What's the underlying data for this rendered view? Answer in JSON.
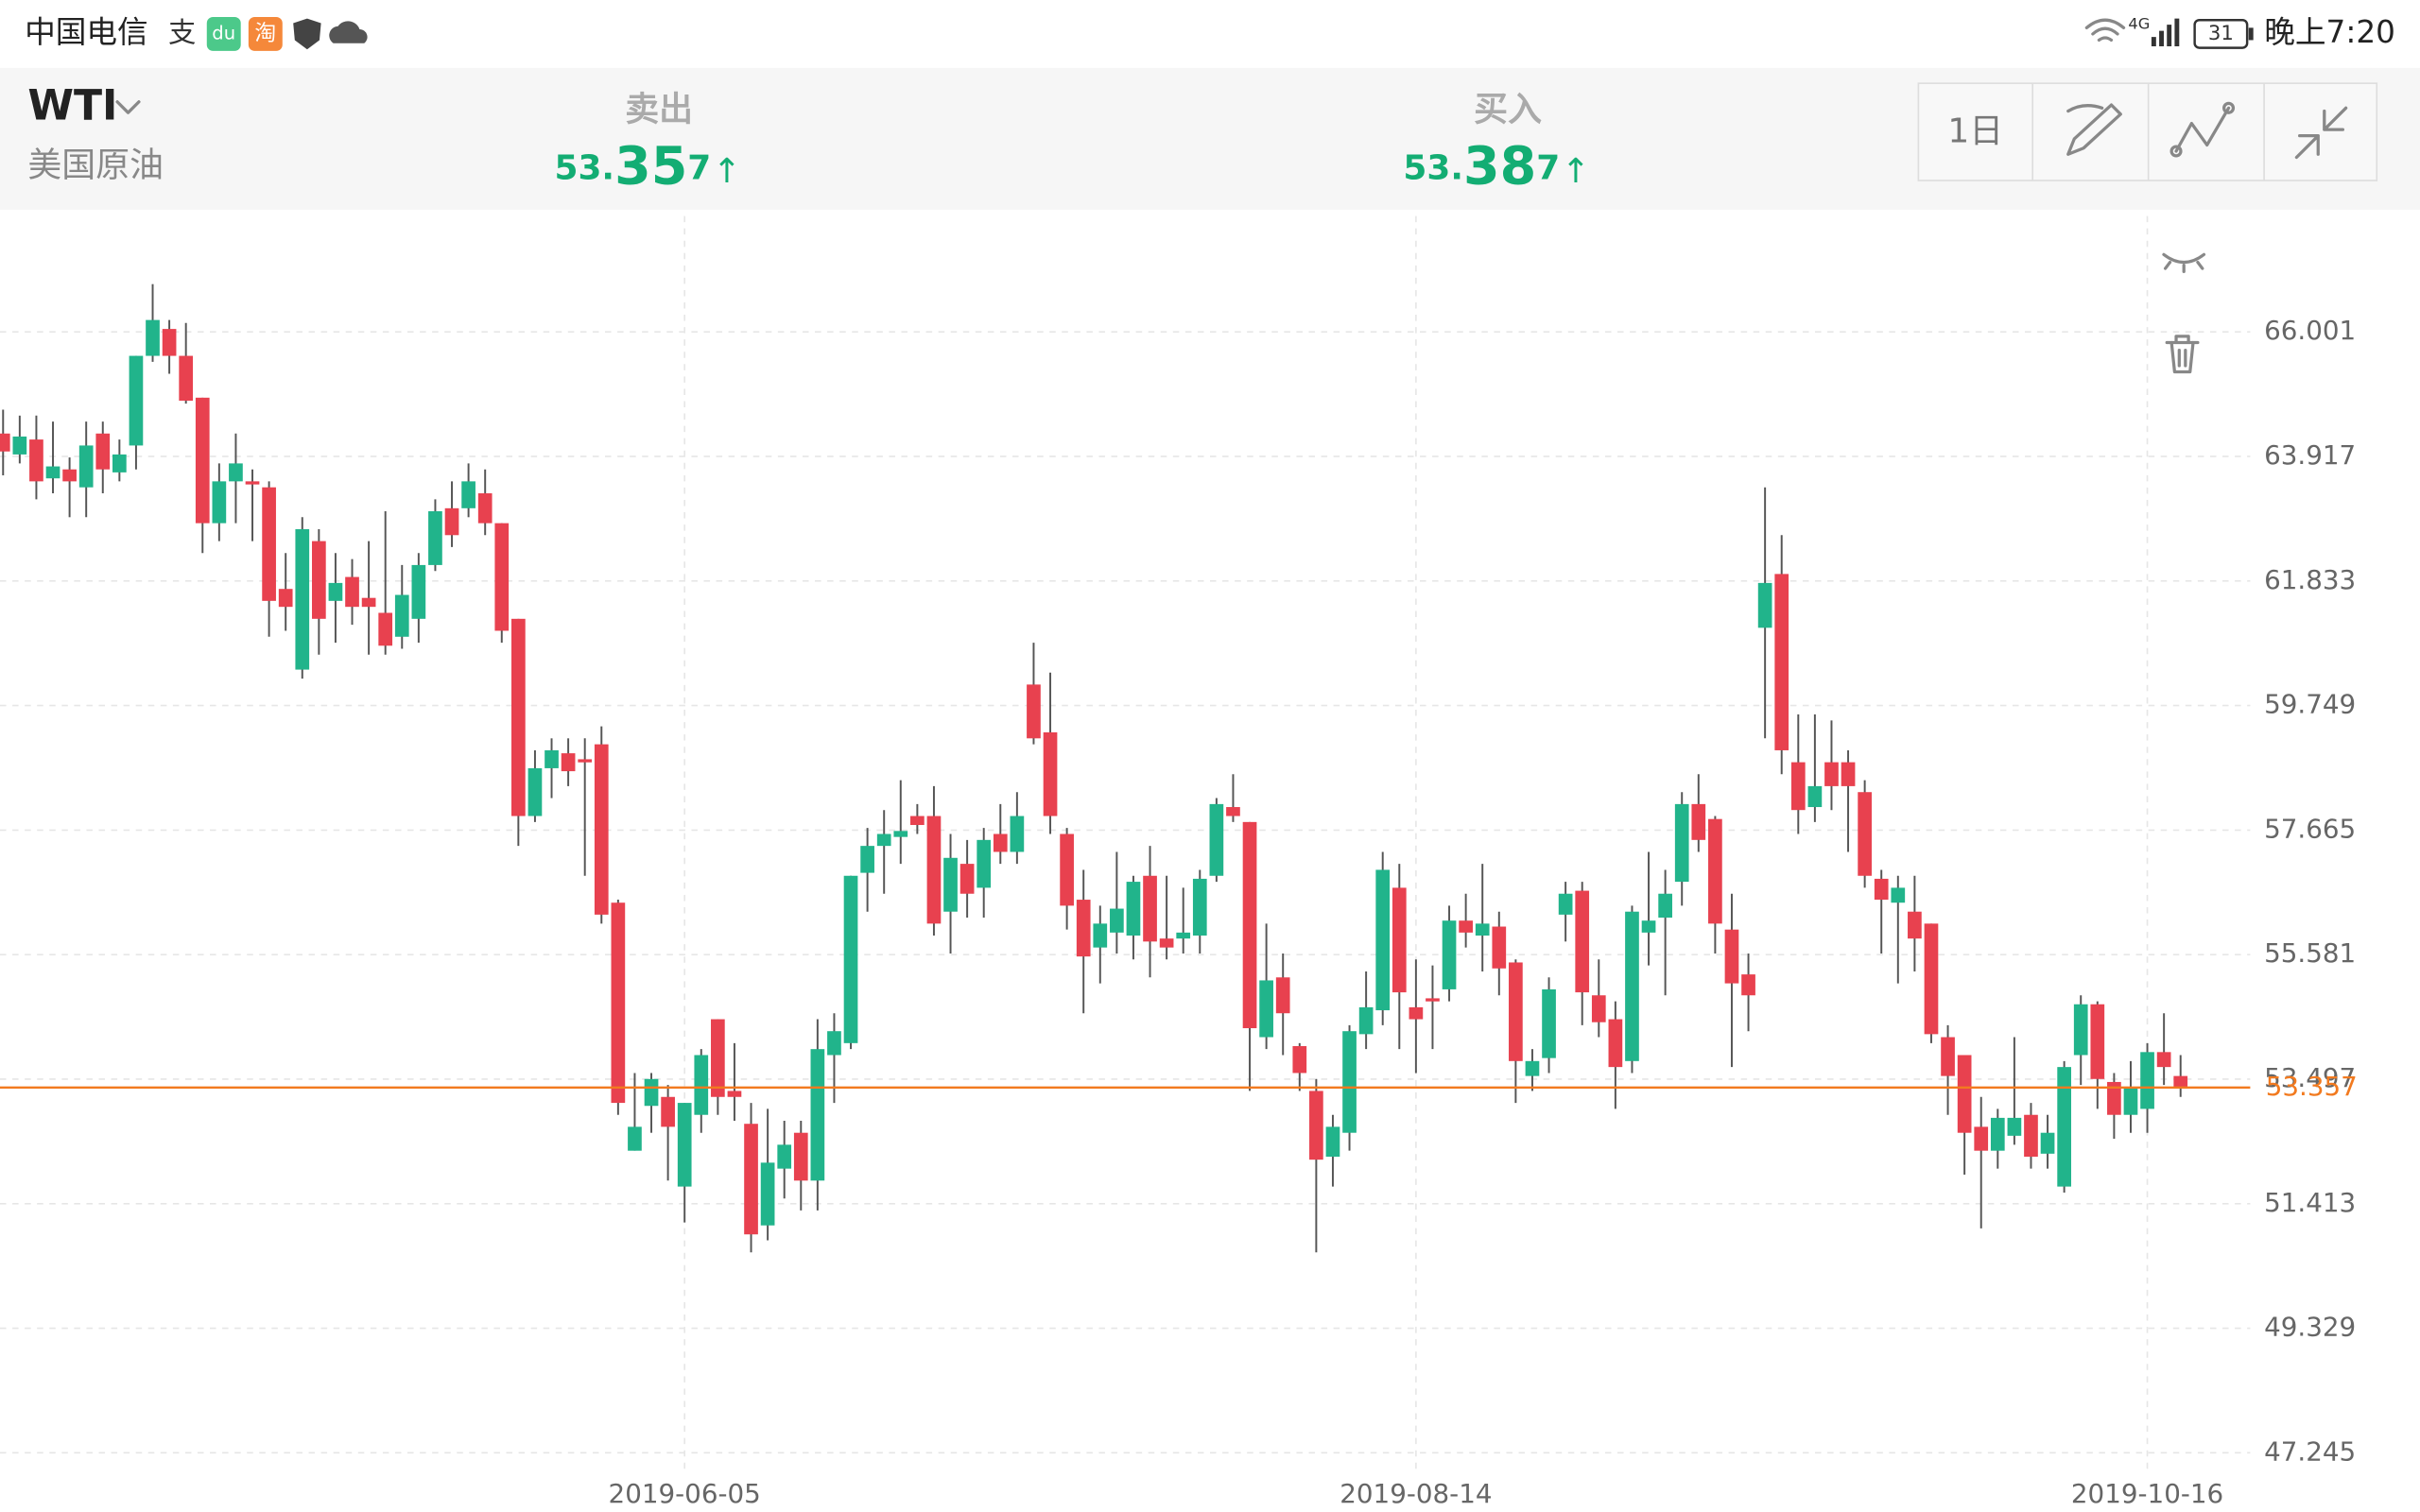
{
  "status_bar": {
    "carrier": "中国电信",
    "icons": [
      "支",
      "du",
      "淘"
    ],
    "network": "4G",
    "battery": "31",
    "time": "晚上7:20"
  },
  "header": {
    "symbol": "WTI",
    "name": "美国原油",
    "sell": {
      "label": "卖出",
      "price": "53.357",
      "arrow": "↑"
    },
    "buy": {
      "label": "买入",
      "price": "53.387",
      "arrow": "↑"
    },
    "period": "1日"
  },
  "chart_data": {
    "type": "candlestick",
    "up_color": "#21b48b",
    "down_color": "#e8414f",
    "grid": true,
    "ylim": [
      46.9,
      67.94
    ],
    "yticks": [
      47.245,
      49.329,
      51.413,
      53.497,
      55.581,
      57.665,
      59.749,
      61.833,
      63.917,
      66.001
    ],
    "current_price": 53.357,
    "current_price_color": "#f27a1f",
    "categories": [
      null,
      null,
      null,
      null,
      null,
      null,
      null,
      null,
      null,
      null,
      null,
      null,
      null,
      null,
      null,
      null,
      null,
      null,
      null,
      null,
      null,
      null,
      null,
      null,
      null,
      null,
      null,
      null,
      null,
      null,
      null,
      null,
      null,
      null,
      null,
      null,
      null,
      null,
      null,
      null,
      null,
      "2019-06-05",
      null,
      null,
      null,
      null,
      null,
      null,
      null,
      null,
      null,
      null,
      null,
      null,
      null,
      null,
      null,
      null,
      null,
      null,
      null,
      null,
      null,
      null,
      null,
      null,
      null,
      null,
      null,
      null,
      null,
      null,
      null,
      null,
      null,
      null,
      null,
      null,
      null,
      null,
      null,
      null,
      null,
      null,
      null,
      "2019-08-14",
      null,
      null,
      null,
      null,
      null,
      null,
      null,
      null,
      null,
      null,
      null,
      null,
      null,
      null,
      null,
      null,
      null,
      null,
      null,
      null,
      null,
      null,
      null,
      null,
      null,
      null,
      null,
      null,
      null,
      null,
      null,
      null,
      null,
      null,
      null,
      null,
      null,
      null,
      null,
      null,
      null,
      null,
      null,
      "2019-10-16",
      null,
      null
    ],
    "ohlc": [
      [
        64.3,
        64.7,
        63.6,
        64.0
      ],
      [
        63.95,
        64.6,
        63.8,
        64.25
      ],
      [
        64.2,
        64.6,
        63.2,
        63.5
      ],
      [
        63.55,
        64.5,
        63.3,
        63.75
      ],
      [
        63.7,
        63.9,
        62.9,
        63.5
      ],
      [
        63.4,
        64.5,
        62.9,
        64.1
      ],
      [
        64.3,
        64.5,
        63.3,
        63.7
      ],
      [
        63.65,
        64.2,
        63.5,
        63.95
      ],
      [
        64.1,
        65.6,
        63.7,
        65.6
      ],
      [
        65.6,
        66.8,
        65.5,
        66.2
      ],
      [
        66.05,
        66.2,
        65.3,
        65.6
      ],
      [
        65.6,
        66.15,
        64.8,
        64.85
      ],
      [
        64.9,
        64.9,
        62.3,
        62.8
      ],
      [
        62.8,
        63.8,
        62.5,
        63.5
      ],
      [
        63.5,
        64.3,
        62.8,
        63.8
      ],
      [
        63.5,
        63.7,
        62.5,
        63.45
      ],
      [
        63.4,
        63.5,
        60.9,
        61.5
      ],
      [
        61.7,
        62.3,
        61.0,
        61.4
      ],
      [
        60.35,
        62.9,
        60.2,
        62.7
      ],
      [
        62.5,
        62.7,
        60.6,
        61.2
      ],
      [
        61.5,
        62.3,
        60.8,
        61.8
      ],
      [
        61.9,
        62.2,
        61.1,
        61.4
      ],
      [
        61.55,
        62.5,
        60.6,
        61.4
      ],
      [
        61.3,
        63.0,
        60.6,
        60.75
      ],
      [
        60.9,
        62.1,
        60.7,
        61.6
      ],
      [
        61.2,
        62.3,
        60.8,
        62.1
      ],
      [
        62.1,
        63.2,
        62.0,
        63.0
      ],
      [
        63.05,
        63.5,
        62.4,
        62.6
      ],
      [
        63.05,
        63.8,
        62.9,
        63.5
      ],
      [
        63.3,
        63.7,
        62.6,
        62.8
      ],
      [
        62.8,
        62.8,
        60.8,
        61.0
      ],
      [
        61.2,
        61.2,
        57.4,
        57.9
      ],
      [
        57.9,
        59.0,
        57.8,
        58.7
      ],
      [
        58.7,
        59.2,
        58.2,
        59.0
      ],
      [
        58.95,
        59.2,
        58.4,
        58.65
      ],
      [
        58.85,
        59.2,
        56.9,
        58.8
      ],
      [
        59.1,
        59.4,
        56.1,
        56.25
      ],
      [
        56.45,
        56.5,
        52.9,
        53.1
      ],
      [
        52.3,
        53.6,
        52.3,
        52.7
      ],
      [
        53.05,
        53.6,
        52.6,
        53.5
      ],
      [
        53.2,
        53.4,
        51.8,
        52.7
      ],
      [
        51.7,
        53.1,
        51.1,
        53.1
      ],
      [
        52.9,
        54.0,
        52.6,
        53.9
      ],
      [
        54.5,
        54.5,
        52.9,
        53.2
      ],
      [
        53.3,
        54.1,
        52.8,
        53.2
      ],
      [
        52.75,
        53.1,
        50.6,
        50.9
      ],
      [
        51.05,
        53.0,
        50.8,
        52.1
      ],
      [
        52.0,
        52.8,
        51.5,
        52.4
      ],
      [
        52.6,
        52.8,
        51.3,
        51.8
      ],
      [
        51.8,
        54.5,
        51.3,
        54.0
      ],
      [
        53.9,
        54.6,
        53.1,
        54.3
      ],
      [
        54.1,
        56.9,
        54.0,
        56.9
      ],
      [
        56.95,
        57.7,
        56.3,
        57.4
      ],
      [
        57.4,
        58.0,
        56.6,
        57.6
      ],
      [
        57.55,
        58.5,
        57.1,
        57.65
      ],
      [
        57.9,
        58.1,
        57.6,
        57.75
      ],
      [
        57.9,
        58.4,
        55.9,
        56.1
      ],
      [
        56.3,
        57.6,
        55.6,
        57.2
      ],
      [
        57.1,
        57.5,
        56.2,
        56.6
      ],
      [
        56.7,
        57.7,
        56.2,
        57.5
      ],
      [
        57.6,
        58.1,
        57.1,
        57.3
      ],
      [
        57.3,
        58.3,
        57.1,
        57.9
      ],
      [
        60.1,
        60.8,
        59.1,
        59.2
      ],
      [
        59.3,
        60.3,
        57.6,
        57.9
      ],
      [
        57.6,
        57.7,
        56.0,
        56.4
      ],
      [
        56.5,
        57.0,
        54.6,
        55.55
      ],
      [
        55.7,
        56.4,
        55.1,
        56.1
      ],
      [
        55.95,
        57.3,
        55.6,
        56.35
      ],
      [
        55.9,
        56.9,
        55.5,
        56.8
      ],
      [
        56.9,
        57.4,
        55.2,
        55.8
      ],
      [
        55.85,
        56.9,
        55.5,
        55.7
      ],
      [
        55.85,
        56.7,
        55.6,
        55.95
      ],
      [
        55.9,
        57.0,
        55.6,
        56.85
      ],
      [
        56.9,
        58.2,
        56.8,
        58.1
      ],
      [
        58.05,
        58.6,
        57.8,
        57.9
      ],
      [
        57.8,
        57.8,
        53.3,
        54.35
      ],
      [
        54.2,
        56.1,
        54.0,
        55.15
      ],
      [
        55.2,
        55.6,
        53.9,
        54.6
      ],
      [
        54.05,
        54.1,
        53.3,
        53.6
      ],
      [
        53.3,
        53.5,
        50.6,
        52.15
      ],
      [
        52.2,
        52.9,
        51.7,
        52.7
      ],
      [
        52.6,
        54.4,
        52.3,
        54.3
      ],
      [
        54.25,
        55.3,
        54.0,
        54.7
      ],
      [
        54.65,
        57.3,
        54.4,
        57.0
      ],
      [
        56.7,
        57.1,
        54.0,
        54.95
      ],
      [
        54.7,
        55.5,
        53.6,
        54.5
      ],
      [
        54.85,
        55.4,
        54.0,
        54.8
      ],
      [
        55.0,
        56.4,
        54.8,
        56.15
      ],
      [
        56.15,
        56.6,
        55.7,
        55.95
      ],
      [
        55.9,
        57.1,
        55.3,
        56.1
      ],
      [
        56.05,
        56.3,
        54.9,
        55.35
      ],
      [
        55.45,
        55.5,
        53.1,
        53.8
      ],
      [
        53.55,
        54.0,
        53.3,
        53.8
      ],
      [
        53.85,
        55.2,
        53.6,
        55.0
      ],
      [
        56.25,
        56.8,
        55.8,
        56.6
      ],
      [
        56.65,
        56.8,
        54.4,
        54.95
      ],
      [
        54.9,
        55.5,
        54.2,
        54.45
      ],
      [
        54.5,
        54.8,
        53.0,
        53.7
      ],
      [
        53.8,
        56.4,
        53.6,
        56.3
      ],
      [
        55.95,
        57.3,
        55.4,
        56.15
      ],
      [
        56.2,
        57.0,
        54.9,
        56.6
      ],
      [
        56.8,
        58.3,
        56.4,
        58.1
      ],
      [
        58.1,
        58.6,
        57.3,
        57.5
      ],
      [
        57.85,
        57.9,
        55.6,
        56.1
      ],
      [
        56.0,
        56.6,
        53.7,
        55.1
      ],
      [
        55.25,
        55.6,
        54.3,
        54.9
      ],
      [
        61.05,
        63.4,
        59.2,
        61.8
      ],
      [
        61.95,
        62.6,
        58.6,
        59.0
      ],
      [
        58.8,
        59.6,
        57.6,
        58.0
      ],
      [
        58.05,
        59.6,
        57.8,
        58.4
      ],
      [
        58.8,
        59.5,
        58.0,
        58.4
      ],
      [
        58.8,
        59.0,
        57.3,
        58.4
      ],
      [
        58.3,
        58.5,
        56.7,
        56.9
      ],
      [
        56.85,
        57.0,
        55.6,
        56.5
      ],
      [
        56.45,
        56.9,
        55.1,
        56.7
      ],
      [
        56.3,
        56.9,
        55.3,
        55.85
      ],
      [
        56.1,
        56.1,
        54.1,
        54.25
      ],
      [
        54.2,
        54.4,
        52.9,
        53.55
      ],
      [
        53.9,
        53.9,
        51.9,
        52.6
      ],
      [
        52.7,
        53.2,
        51.0,
        52.3
      ],
      [
        52.3,
        53.0,
        52.0,
        52.85
      ],
      [
        52.55,
        54.2,
        52.4,
        52.85
      ],
      [
        52.9,
        53.1,
        52.0,
        52.2
      ],
      [
        52.25,
        52.9,
        52.0,
        52.6
      ],
      [
        51.7,
        53.8,
        51.6,
        53.7
      ],
      [
        53.9,
        54.9,
        53.4,
        54.75
      ],
      [
        54.75,
        54.8,
        53.0,
        53.5
      ],
      [
        53.45,
        53.6,
        52.5,
        52.9
      ],
      [
        52.9,
        53.8,
        52.6,
        53.35
      ],
      [
        53.0,
        54.1,
        52.6,
        53.95
      ],
      [
        53.95,
        54.6,
        53.4,
        53.7
      ],
      [
        53.55,
        53.9,
        53.2,
        53.357
      ]
    ]
  }
}
